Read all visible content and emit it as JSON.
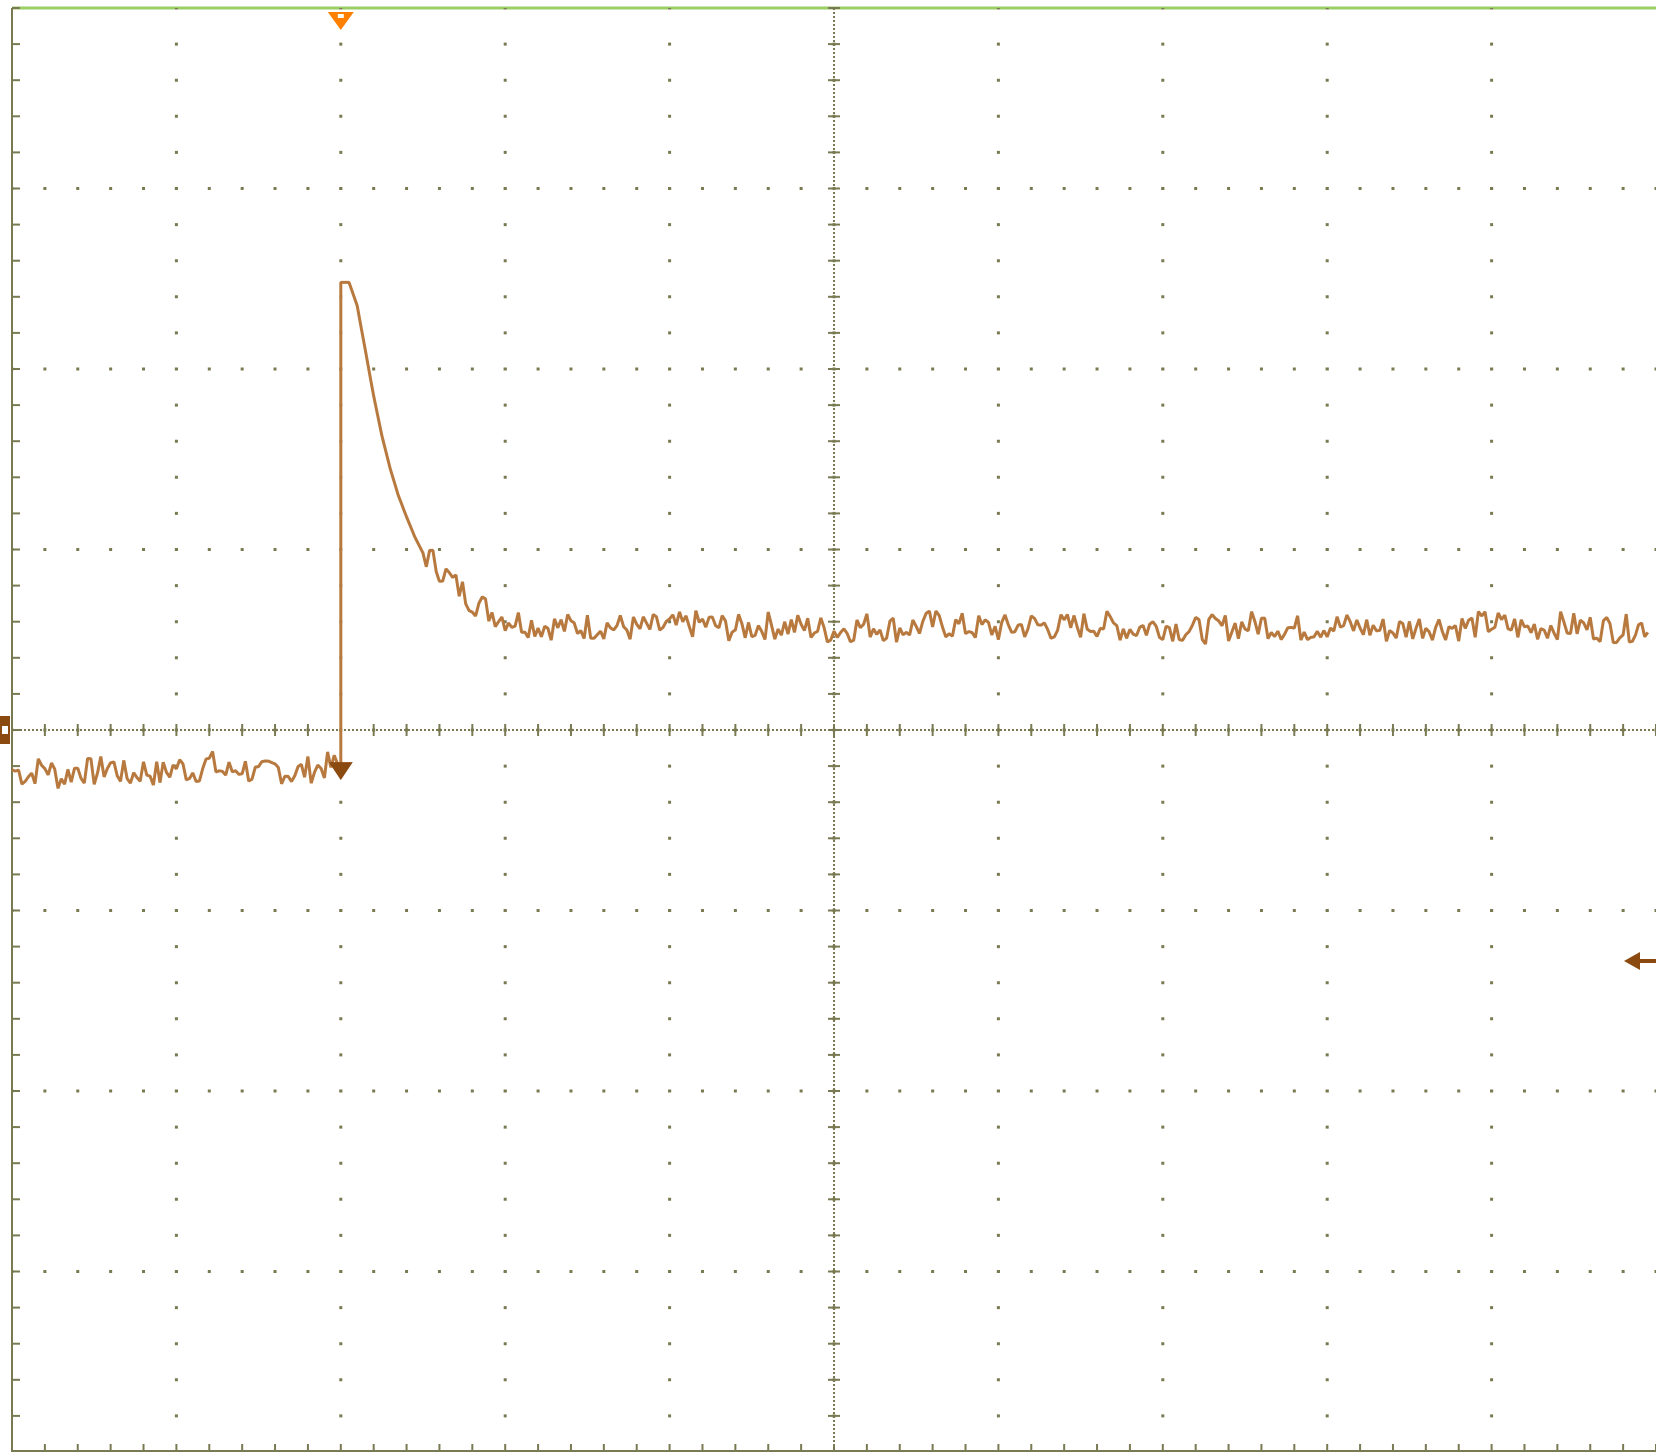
{
  "chart_data": {
    "type": "line",
    "title": "",
    "xlabel": "",
    "ylabel": "",
    "grid": true,
    "x_divisions": 10,
    "y_divisions": 8,
    "xlim": [
      -2,
      8
    ],
    "ylim": [
      -4,
      4
    ],
    "series": [
      {
        "points": [
          [
            -2.0,
            -0.22
          ],
          [
            -1.9,
            -0.25
          ],
          [
            -1.8,
            -0.2
          ],
          [
            -1.7,
            -0.27
          ],
          [
            -1.6,
            -0.21
          ],
          [
            -1.5,
            -0.24
          ],
          [
            -1.4,
            -0.19
          ],
          [
            -1.3,
            -0.26
          ],
          [
            -1.2,
            -0.22
          ],
          [
            -1.1,
            -0.25
          ],
          [
            -1.0,
            -0.2
          ],
          [
            -0.9,
            -0.23
          ],
          [
            -0.8,
            -0.18
          ],
          [
            -0.7,
            -0.24
          ],
          [
            -0.6,
            -0.2
          ],
          [
            -0.5,
            -0.26
          ],
          [
            -0.4,
            -0.21
          ],
          [
            -0.3,
            -0.24
          ],
          [
            -0.2,
            -0.22
          ],
          [
            -0.1,
            -0.2
          ],
          [
            0.0,
            -0.2
          ],
          [
            0.0,
            2.48
          ],
          [
            0.05,
            2.48
          ],
          [
            0.1,
            2.35
          ],
          [
            0.15,
            2.1
          ],
          [
            0.2,
            1.85
          ],
          [
            0.25,
            1.63
          ],
          [
            0.3,
            1.45
          ],
          [
            0.35,
            1.3
          ],
          [
            0.4,
            1.18
          ],
          [
            0.45,
            1.07
          ],
          [
            0.5,
            0.98
          ],
          [
            0.6,
            0.9
          ],
          [
            0.7,
            0.8
          ],
          [
            0.8,
            0.72
          ],
          [
            0.9,
            0.66
          ],
          [
            1.0,
            0.62
          ],
          [
            1.2,
            0.58
          ],
          [
            1.4,
            0.57
          ],
          [
            1.6,
            0.58
          ],
          [
            1.8,
            0.56
          ],
          [
            2.0,
            0.57
          ],
          [
            2.2,
            0.59
          ],
          [
            2.4,
            0.56
          ],
          [
            2.6,
            0.58
          ],
          [
            2.8,
            0.57
          ],
          [
            3.0,
            0.55
          ],
          [
            3.2,
            0.58
          ],
          [
            3.4,
            0.56
          ],
          [
            3.6,
            0.59
          ],
          [
            3.8,
            0.57
          ],
          [
            4.0,
            0.56
          ],
          [
            4.2,
            0.58
          ],
          [
            4.4,
            0.57
          ],
          [
            4.6,
            0.59
          ],
          [
            4.8,
            0.56
          ],
          [
            5.0,
            0.58
          ],
          [
            5.2,
            0.55
          ],
          [
            5.4,
            0.57
          ],
          [
            5.6,
            0.59
          ],
          [
            5.8,
            0.56
          ],
          [
            6.0,
            0.58
          ],
          [
            6.2,
            0.57
          ],
          [
            6.4,
            0.55
          ],
          [
            6.6,
            0.58
          ],
          [
            6.8,
            0.57
          ],
          [
            7.0,
            0.59
          ],
          [
            7.2,
            0.56
          ],
          [
            7.4,
            0.58
          ],
          [
            7.6,
            0.57
          ],
          [
            7.8,
            0.56
          ],
          [
            7.95,
            0.58
          ]
        ]
      }
    ],
    "trigger_time": 0,
    "trigger_level": -1.28,
    "ground_level": 0,
    "colors": {
      "trace": "#b8793f",
      "trace_dark": "#8b4a10",
      "trigger_marker": "#ff8000",
      "grid": "#7a7a52",
      "top_border": "#9acd65",
      "background": "#ffffff"
    }
  }
}
